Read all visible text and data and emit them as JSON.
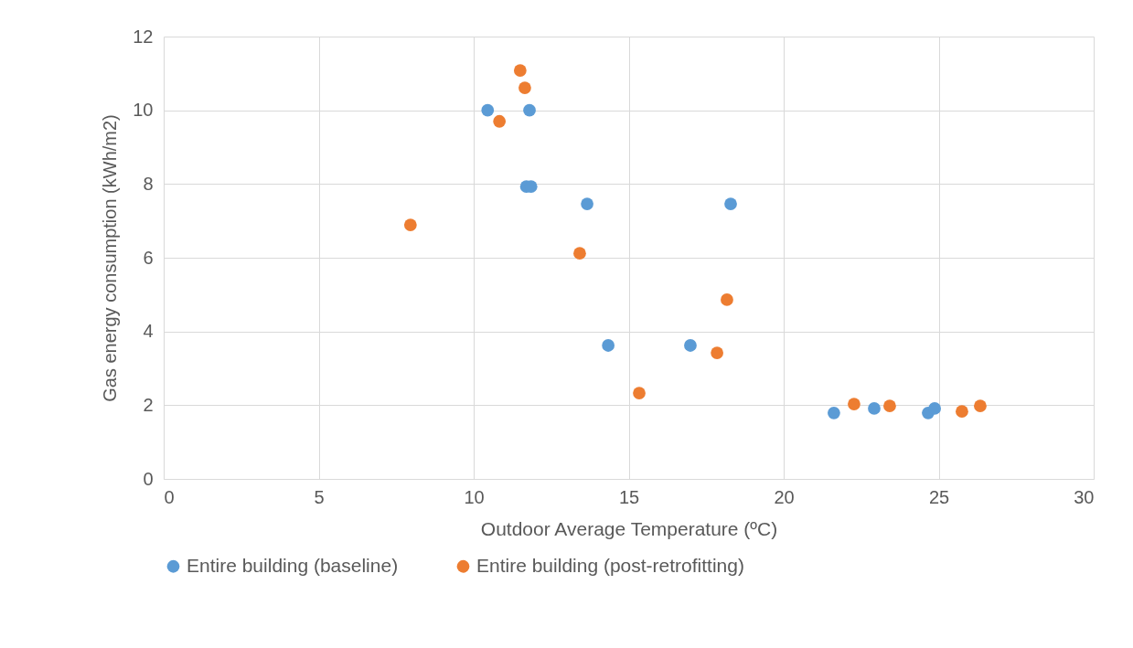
{
  "chart_data": {
    "type": "scatter",
    "xlabel": "Outdoor Average Temperature (ºC)",
    "ylabel": "Gas energy consumption (kWh/m2)",
    "xlim": [
      0,
      30
    ],
    "xticks": [
      0,
      5,
      10,
      15,
      20,
      25,
      30
    ],
    "ylim": [
      0,
      12
    ],
    "yticks": [
      0,
      2,
      4,
      6,
      8,
      10,
      12
    ],
    "grid": true,
    "legend": "bottom",
    "marker": "circle",
    "series": [
      {
        "name": "Entire building (baseline)",
        "color": "#5b9bd5",
        "x": [
          10.45,
          11.8,
          11.7,
          11.85,
          13.66,
          18.29,
          14.34,
          16.99,
          21.62,
          22.92,
          24.66,
          24.87
        ],
        "values": [
          10,
          10,
          7.93,
          7.93,
          7.46,
          7.46,
          3.62,
          3.62,
          1.79,
          1.91,
          1.79,
          1.91
        ]
      },
      {
        "name": "Entire building (post-retrofitting)",
        "color": "#ed7d31",
        "x": [
          11.5,
          11.65,
          10.83,
          7.96,
          13.42,
          18.17,
          17.85,
          15.34,
          22.27,
          23.42,
          25.75,
          26.34
        ],
        "values": [
          11.08,
          10.61,
          9.7,
          6.89,
          6.12,
          4.86,
          3.42,
          2.33,
          2.03,
          1.98,
          1.83,
          1.98
        ]
      }
    ]
  }
}
